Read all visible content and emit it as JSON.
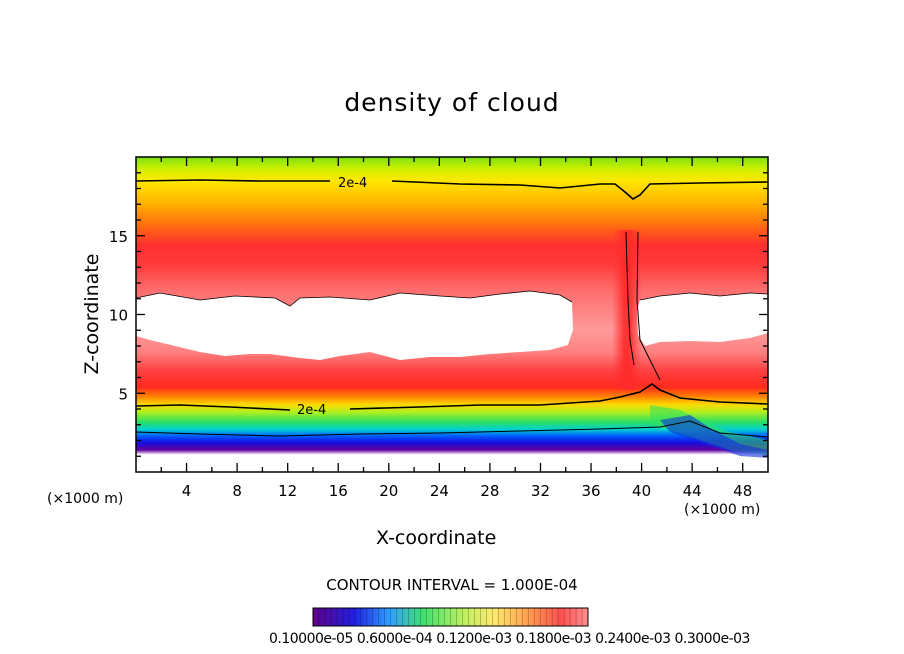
{
  "chart_data": {
    "type": "heatmap",
    "title": "density of cloud",
    "xlabel": "X-coordinate",
    "ylabel": "Z-coordinate",
    "x_unit": "(×1000 m)",
    "y_unit": "(×1000 m)",
    "xlim": [
      0,
      50
    ],
    "ylim": [
      0,
      20
    ],
    "x_ticks": [
      4,
      8,
      12,
      16,
      20,
      24,
      28,
      32,
      36,
      40,
      44,
      48
    ],
    "y_ticks": [
      5,
      10,
      15
    ],
    "contour_interval_text": "CONTOUR INTERVAL = 1.000E-04",
    "contour_labels": [
      "2e-4",
      "2e-4"
    ],
    "colorbar_labels_text": "0.10000e-05 0.6000e-04 0.1200e-03 0.1800e-03 0.2400e-03 0.3000e-03",
    "colors": {
      "low": "#5a0090",
      "blue": "#0020ff",
      "green": "#30e040",
      "yellow": "#ffe800",
      "orange": "#ff8000",
      "red": "#ff2020",
      "clear": "#ffffff"
    },
    "features": {
      "cloud_top_z": 18.2,
      "cloud_base_z": 2.0,
      "clear_gap_z": [
        8.2,
        11.0
      ],
      "dense_column_x": 38.5
    }
  }
}
